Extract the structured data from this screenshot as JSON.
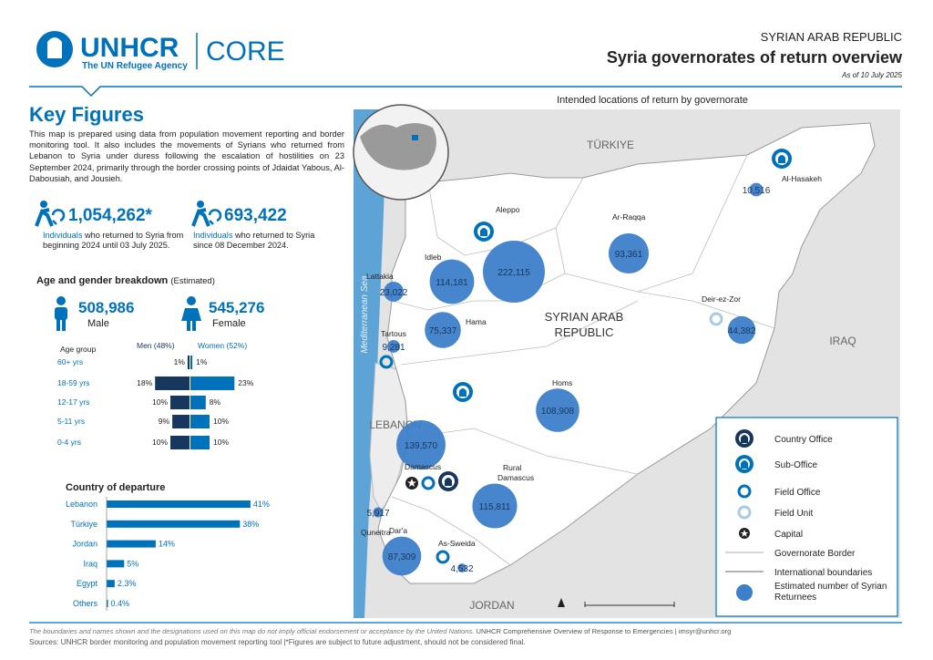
{
  "header": {
    "org": "UNHCR",
    "tagline": "The UN Refugee Agency",
    "product": "CORE",
    "country": "SYRIAN ARAB REPUBLIC",
    "title": "Syria governorates of return overview",
    "date": "As of 10 July 2025"
  },
  "key_figures": {
    "title": "Key Figures",
    "intro": "This map is prepared using data from population movement reporting and border monitoring tool. It also includes the movements of Syrians who returned from Lebanon to Syria under duress following the escalation of hostilities on 23 September 2024, primarily through the border crossing points of Jdaidat Yabous, Al-Dabousiah, and Jousieh.",
    "figures": [
      {
        "value": "1,054,262*",
        "highlight": "Individuals",
        "text": "who returned to Syria from beginning 2024 until 03 July 2025."
      },
      {
        "value": "693,422",
        "highlight": "Individuals",
        "text": "who returned to Syria since 08 December 2024."
      }
    ]
  },
  "age_gender": {
    "title": "Age and gender breakdown",
    "qualifier": "(Estimated)",
    "male": {
      "value": "508,986",
      "label": "Male"
    },
    "female": {
      "value": "545,276",
      "label": "Female"
    },
    "group_header": "Age group",
    "men_header": "Men (48%)",
    "women_header": "Women (52%)",
    "groups": [
      "60+ yrs",
      "18-59 yrs",
      "12-17 yrs",
      "5-11 yrs",
      "0-4 yrs"
    ],
    "men": [
      1,
      18,
      10,
      9,
      10
    ],
    "men_labels": [
      "1%",
      "18%",
      "10%",
      "9%",
      "10%"
    ],
    "women": [
      1,
      23,
      8,
      10,
      10
    ],
    "women_labels": [
      "1%",
      "23%",
      "8%",
      "10%",
      "10%"
    ]
  },
  "departure": {
    "title": "Country of departure",
    "countries": [
      "Lebanon",
      "Türkiye",
      "Jordan",
      "Iraq",
      "Egypt",
      "Others"
    ],
    "values": [
      41,
      38,
      14,
      5,
      2.3,
      0.4
    ],
    "value_labels": [
      "41%",
      "38%",
      "14%",
      "5%",
      "2.3%",
      "0.4%"
    ]
  },
  "map": {
    "title": "Intended locations of return by governorate",
    "neighbours": [
      "TÜRKIYE",
      "IRAQ",
      "LEBANON",
      "JORDAN"
    ],
    "country": [
      "SYRIAN ARAB",
      "REPUBLIC"
    ],
    "sea": "Mediterranean Sea",
    "governorates": [
      {
        "name": "Aleppo",
        "value": 222115,
        "label": "222,115"
      },
      {
        "name": "Ar-Raqqa",
        "value": 93361,
        "label": "93,361"
      },
      {
        "name": "Al-Hasakeh",
        "value": 10516,
        "label": "10,516"
      },
      {
        "name": "Idleb",
        "value": 114181,
        "label": "114,181"
      },
      {
        "name": "Lattakia",
        "value": 23022,
        "label": "23,022"
      },
      {
        "name": "Hama",
        "value": 75337,
        "label": "75,337"
      },
      {
        "name": "Tartous",
        "value": 9281,
        "label": "9,281"
      },
      {
        "name": "Deir-ez-Zor",
        "value": 44382,
        "label": "44,382"
      },
      {
        "name": "Homs",
        "value": 108908,
        "label": "108,908"
      },
      {
        "name": "Damascus",
        "value": 139570,
        "label": "139,570"
      },
      {
        "name": "Rural Damascus",
        "value": 115811,
        "label": "115,811"
      },
      {
        "name": "Quneitra",
        "value": 5917,
        "label": "5,917"
      },
      {
        "name": "Dar'a",
        "value": 87309,
        "label": "87,309"
      },
      {
        "name": "As-Sweida",
        "value": 4532,
        "label": "4,532"
      }
    ]
  },
  "legend": {
    "items": [
      "Country Office",
      "Sub-Office",
      "Field Office",
      "Field Unit",
      "Capital",
      "Governorate Border",
      "International boundaries",
      "Estimated number of Syrian Returnees"
    ]
  },
  "footer": {
    "disclaimer": "The boundaries and names shown and the designations used on this map do not imply official endorsement or acceptance by the United Nations.",
    "credit": "UNHCR Comprehensive Overview of Response to Emergencies | imsyr@unhcr.org",
    "sources": "Sources: UNHCR border monitoring and population movement reporting tool |*Figures are subject to future adjustment, should not be considered final."
  }
}
